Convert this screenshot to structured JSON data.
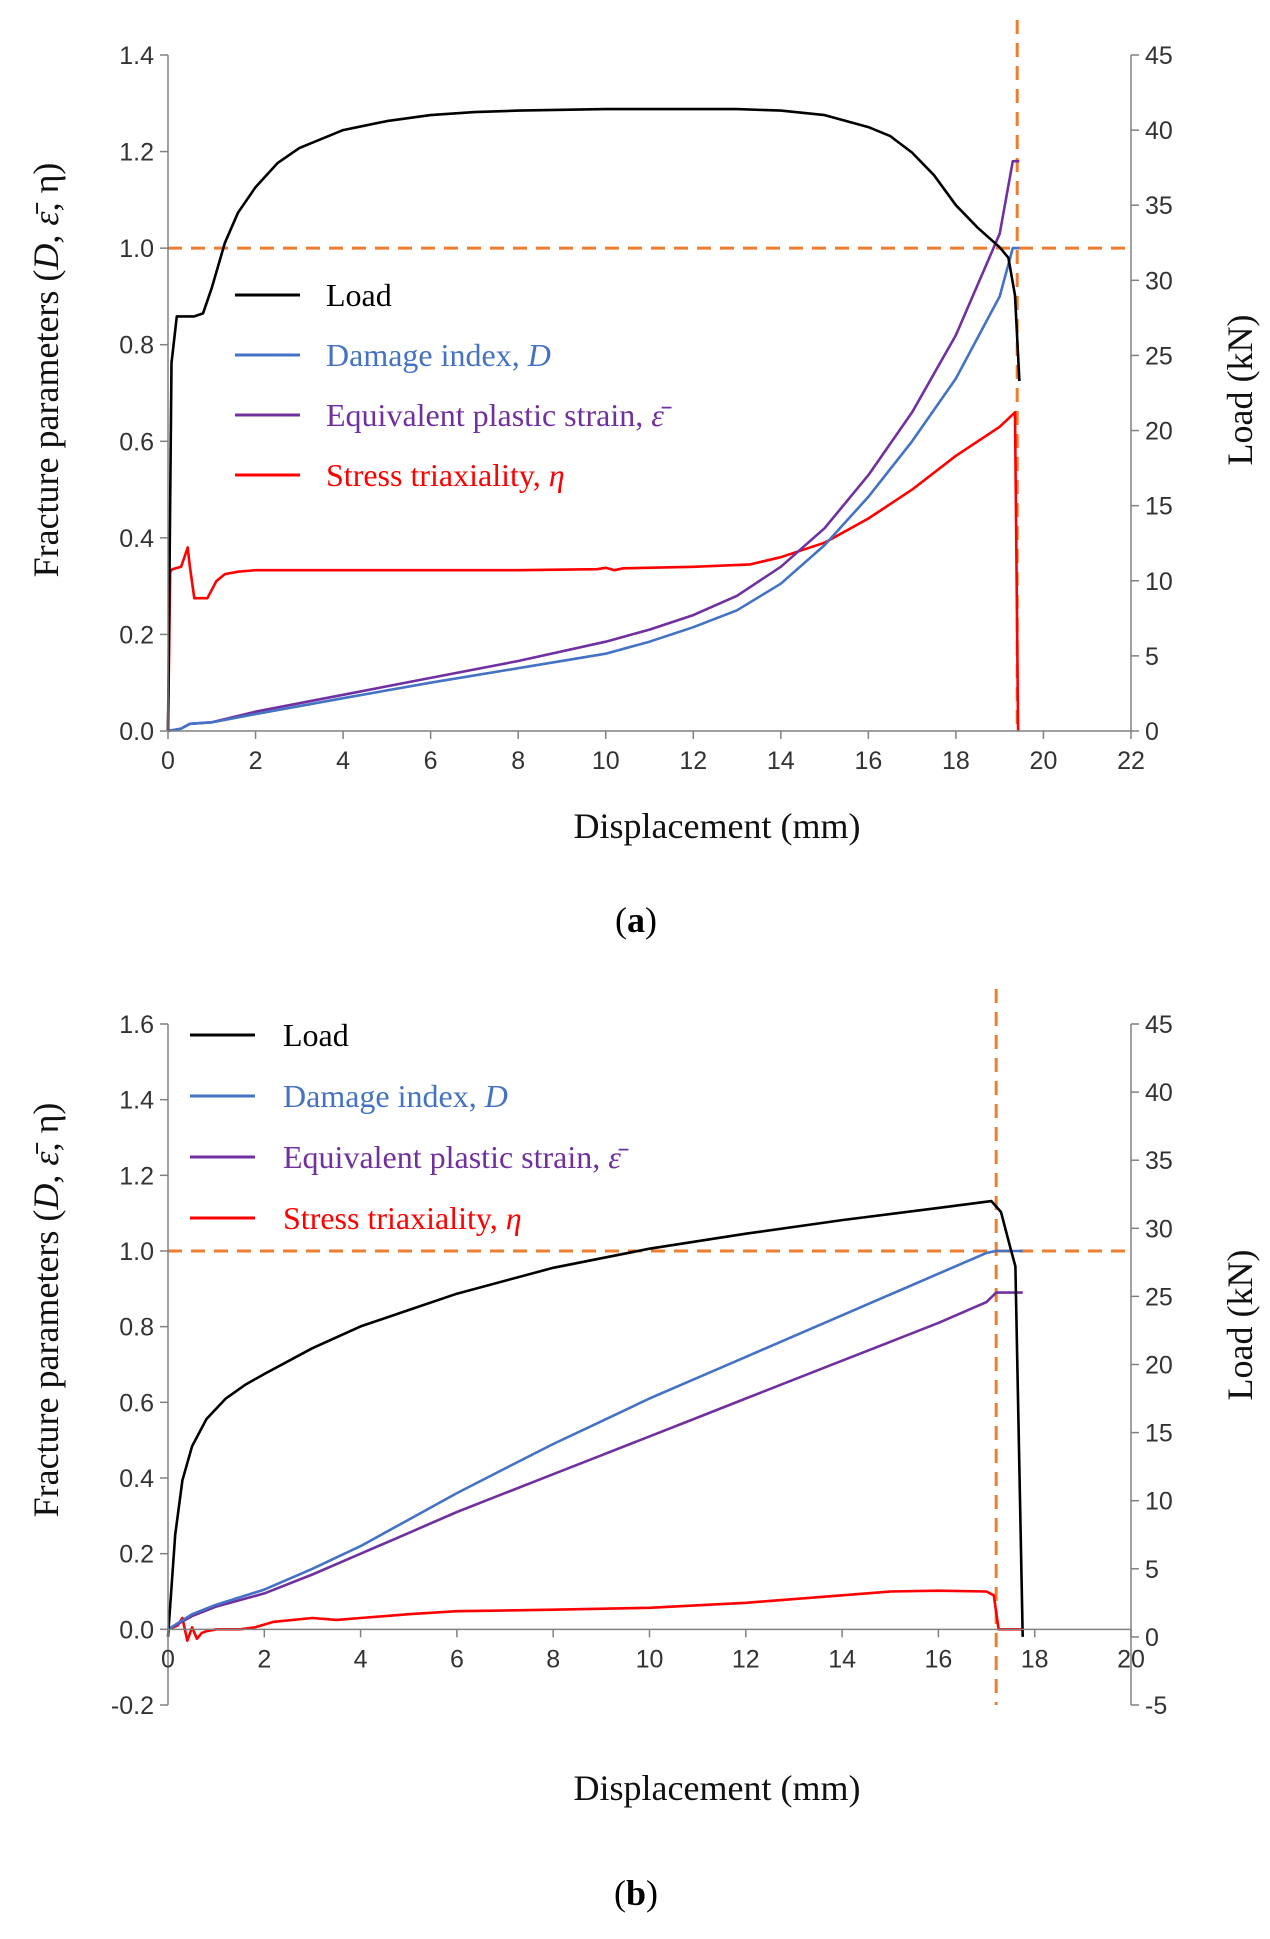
{
  "chart_data": [
    {
      "type": "line",
      "caption": "(a)",
      "caption_letter": "a",
      "xlabel": "Displacement (mm)",
      "ylabel": "Fracture parameters (D, ε̄, η)",
      "ylabel2": "Load (kN)",
      "xlim": [
        0,
        22
      ],
      "ylim": [
        0,
        1.4
      ],
      "ylim2": [
        0,
        45
      ],
      "xticks": [
        "0",
        "2",
        "4",
        "6",
        "8",
        "10",
        "12",
        "14",
        "16",
        "18",
        "20",
        "22"
      ],
      "yticks": [
        "0.0",
        "0.2",
        "0.4",
        "0.6",
        "0.8",
        "1.0",
        "1.2",
        "1.4"
      ],
      "yticks2": [
        "0",
        "5",
        "10",
        "15",
        "20",
        "25",
        "30",
        "35",
        "40",
        "45"
      ],
      "reference_lines": {
        "fracture_displacement": 19.4,
        "damage_threshold": 1.0
      },
      "legend": [
        {
          "label": "Load",
          "symbol": "",
          "color": "#000000"
        },
        {
          "label": "Damage index, ",
          "symbol": "D",
          "color": "#4472c4"
        },
        {
          "label": "Equivalent plastic strain, ",
          "symbol": "ε̄",
          "color": "#7030a0"
        },
        {
          "label": "Stress triaxiality, ",
          "symbol": "η",
          "color": "#ff0000"
        }
      ],
      "series": [
        {
          "name": "Load",
          "axis": "right",
          "color": "#000000",
          "x": [
            0,
            0.08,
            0.2,
            0.4,
            0.6,
            0.8,
            1.0,
            1.3,
            1.6,
            2.0,
            2.5,
            3,
            4,
            5,
            6,
            7,
            8,
            9,
            10,
            11,
            12,
            13,
            14,
            15,
            16,
            16.5,
            17,
            17.5,
            18,
            18.5,
            19,
            19.2,
            19.35,
            19.45
          ],
          "values": [
            0,
            24.5,
            27.6,
            27.6,
            27.6,
            27.8,
            29.5,
            32.5,
            34.5,
            36.2,
            37.8,
            38.8,
            40.0,
            40.6,
            41.0,
            41.2,
            41.3,
            41.35,
            41.4,
            41.4,
            41.4,
            41.4,
            41.3,
            41.0,
            40.2,
            39.6,
            38.5,
            37.0,
            35.0,
            33.5,
            32.2,
            31.5,
            29.0,
            23.3
          ]
        },
        {
          "name": "Damage index, D",
          "axis": "left",
          "color": "#4472c4",
          "x": [
            0,
            0.3,
            0.5,
            1,
            2,
            4,
            6,
            8,
            10,
            11,
            12,
            13,
            14,
            15,
            16,
            17,
            18,
            19,
            19.3,
            19.45
          ],
          "values": [
            0,
            0.005,
            0.015,
            0.018,
            0.035,
            0.068,
            0.1,
            0.13,
            0.16,
            0.185,
            0.215,
            0.25,
            0.305,
            0.385,
            0.485,
            0.6,
            0.73,
            0.9,
            1.0,
            1.0
          ]
        },
        {
          "name": "Equivalent plastic strain",
          "axis": "left",
          "color": "#7030a0",
          "x": [
            0,
            0.3,
            0.5,
            1,
            2,
            4,
            6,
            8,
            10,
            11,
            12,
            13,
            14,
            15,
            16,
            17,
            18,
            19,
            19.3,
            19.45
          ],
          "values": [
            0,
            0.005,
            0.015,
            0.018,
            0.04,
            0.075,
            0.11,
            0.145,
            0.185,
            0.21,
            0.24,
            0.28,
            0.34,
            0.42,
            0.53,
            0.66,
            0.82,
            1.03,
            1.18,
            1.18
          ]
        },
        {
          "name": "Stress triaxiality",
          "axis": "left",
          "color": "#ff0000",
          "x": [
            0,
            0.05,
            0.1,
            0.3,
            0.45,
            0.5,
            0.6,
            0.9,
            1.1,
            1.3,
            1.6,
            2,
            4,
            6,
            8,
            9.8,
            10,
            10.2,
            10.4,
            12,
            13.3,
            14,
            15,
            16,
            17,
            18,
            19,
            19.35,
            19.42
          ],
          "values": [
            0,
            0.33,
            0.335,
            0.34,
            0.38,
            0.34,
            0.275,
            0.275,
            0.31,
            0.325,
            0.33,
            0.333,
            0.333,
            0.333,
            0.333,
            0.335,
            0.338,
            0.333,
            0.337,
            0.34,
            0.345,
            0.36,
            0.39,
            0.44,
            0.5,
            0.57,
            0.63,
            0.66,
            0
          ]
        }
      ]
    },
    {
      "type": "line",
      "caption": "(b)",
      "caption_letter": "b",
      "xlabel": "Displacement (mm)",
      "ylabel": "Fracture parameters (D, ε̄, η)",
      "ylabel2": "Load (kN)",
      "xlim": [
        0,
        20
      ],
      "ylim": [
        -0.2,
        1.6
      ],
      "ylim2": [
        -5,
        45
      ],
      "xticks": [
        "0",
        "2",
        "4",
        "6",
        "8",
        "10",
        "12",
        "14",
        "16",
        "18",
        "20"
      ],
      "yticks": [
        "-0.2",
        "0.0",
        "0.2",
        "0.4",
        "0.6",
        "0.8",
        "1.0",
        "1.2",
        "1.4",
        "1.6"
      ],
      "yticks2": [
        "-5",
        "0",
        "5",
        "10",
        "15",
        "20",
        "25",
        "30",
        "35",
        "40",
        "45"
      ],
      "reference_lines": {
        "fracture_displacement": 17.2,
        "damage_threshold": 1.0
      },
      "legend": [
        {
          "label": "Load",
          "symbol": "",
          "color": "#000000"
        },
        {
          "label": "Damage index, ",
          "symbol": "D",
          "color": "#4472c4"
        },
        {
          "label": "Equivalent plastic strain, ",
          "symbol": "ε̄",
          "color": "#7030a0"
        },
        {
          "label": "Stress triaxiality, ",
          "symbol": "η",
          "color": "#ff0000"
        }
      ],
      "series": [
        {
          "name": "Load",
          "axis": "right",
          "color": "#000000",
          "x": [
            0,
            0.15,
            0.3,
            0.5,
            0.8,
            1.2,
            1.6,
            2,
            3,
            4,
            5,
            6,
            8,
            10,
            12,
            14,
            16,
            17.1,
            17.3,
            17.5,
            17.6,
            17.75
          ],
          "values": [
            0,
            7.5,
            11.5,
            14,
            16,
            17.5,
            18.5,
            19.3,
            21.2,
            22.8,
            24,
            25.2,
            27.1,
            28.5,
            29.6,
            30.6,
            31.5,
            32,
            31.2,
            28.5,
            27.2,
            0
          ]
        },
        {
          "name": "Damage index, D",
          "axis": "left",
          "color": "#4472c4",
          "x": [
            0,
            0.5,
            1,
            2,
            3,
            4,
            5,
            6,
            7,
            8,
            9,
            10,
            11,
            12,
            13,
            14,
            15,
            16,
            17,
            17.2,
            17.75
          ],
          "values": [
            0,
            0.04,
            0.065,
            0.105,
            0.16,
            0.22,
            0.29,
            0.36,
            0.425,
            0.49,
            0.55,
            0.61,
            0.665,
            0.72,
            0.775,
            0.83,
            0.885,
            0.94,
            0.995,
            1.0,
            1.0
          ]
        },
        {
          "name": "Equivalent plastic strain",
          "axis": "left",
          "color": "#7030a0",
          "x": [
            0,
            0.5,
            1,
            2,
            3,
            4,
            5,
            6,
            7,
            8,
            9,
            10,
            11,
            12,
            13,
            14,
            15,
            16,
            17,
            17.2,
            17.75
          ],
          "values": [
            0,
            0.035,
            0.06,
            0.095,
            0.145,
            0.2,
            0.255,
            0.31,
            0.36,
            0.41,
            0.46,
            0.51,
            0.56,
            0.61,
            0.66,
            0.71,
            0.76,
            0.81,
            0.865,
            0.89,
            0.89
          ]
        },
        {
          "name": "Stress triaxiality",
          "axis": "left",
          "color": "#ff0000",
          "x": [
            0,
            0.2,
            0.3,
            0.4,
            0.5,
            0.6,
            0.7,
            0.8,
            1.0,
            1.5,
            1.8,
            2.2,
            3,
            3.5,
            4,
            5,
            6,
            8,
            10,
            12,
            14,
            15,
            16,
            17,
            17.15,
            17.25,
            17.75
          ],
          "values": [
            0,
            0.01,
            0.03,
            -0.03,
            0.005,
            -0.025,
            -0.01,
            -0.005,
            0.0,
            0.0,
            0.005,
            0.02,
            0.03,
            0.025,
            0.03,
            0.04,
            0.048,
            0.052,
            0.057,
            0.07,
            0.09,
            0.1,
            0.102,
            0.1,
            0.09,
            0.0,
            0.0
          ]
        }
      ]
    }
  ]
}
